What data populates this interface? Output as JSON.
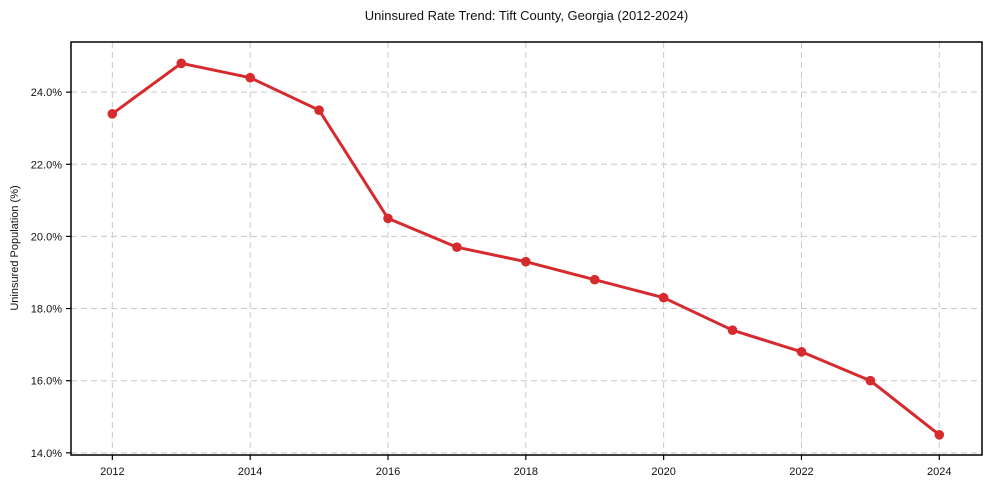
{
  "chart_data": {
    "type": "line",
    "title": "Uninsured Rate Trend: Tift County, Georgia (2012-2024)",
    "xlabel": "",
    "ylabel": "Uninsured Population (%)",
    "x": [
      2012,
      2013,
      2014,
      2015,
      2016,
      2017,
      2018,
      2019,
      2020,
      2021,
      2022,
      2023,
      2024
    ],
    "values": [
      23.4,
      24.8,
      24.4,
      23.5,
      20.5,
      19.7,
      19.3,
      18.8,
      18.3,
      17.4,
      16.8,
      16.0,
      14.5
    ],
    "x_tick_values": [
      2012,
      2014,
      2016,
      2018,
      2020,
      2022,
      2024
    ],
    "x_tick_labels": [
      "2012",
      "2014",
      "2016",
      "2018",
      "2020",
      "2022",
      "2024"
    ],
    "y_tick_values": [
      14,
      16,
      18,
      20,
      22,
      24
    ],
    "y_tick_labels": [
      "14.0%",
      "16.0%",
      "18.0%",
      "20.0%",
      "22.0%",
      "24.0%"
    ],
    "xlim": [
      2011.4,
      2024.62
    ],
    "ylim": [
      13.94,
      25.39
    ],
    "grid": true,
    "grid_style": "dashed",
    "legend": "none",
    "line_color": "#d62b2e",
    "marker": "circle",
    "grid_color": "#c9c9c9",
    "spine_color": "#000000",
    "text_color": "#111111"
  }
}
